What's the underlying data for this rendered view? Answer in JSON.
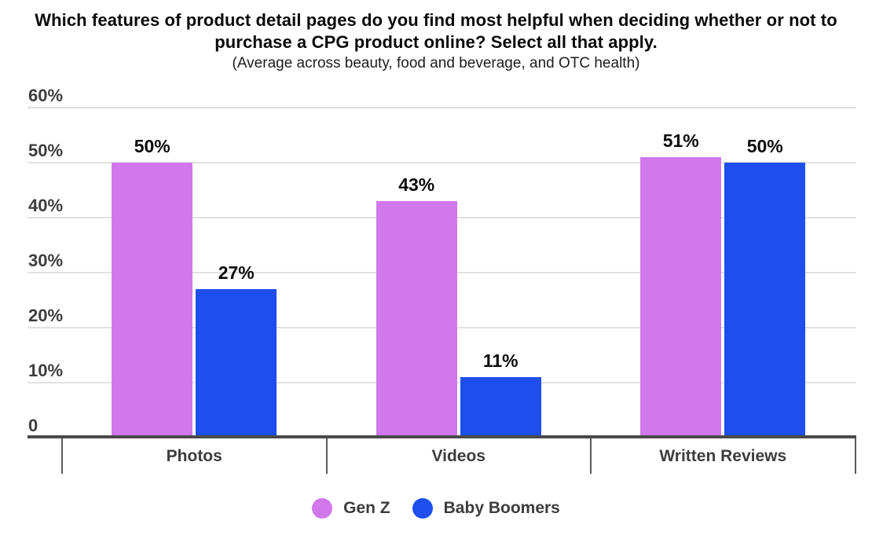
{
  "header": {
    "title": "Which features of product detail pages do you find most helpful when deciding whether or not to purchase a CPG product online? Select all that apply.",
    "subtitle": "(Average across beauty, food and beverage, and OTC health)"
  },
  "chart_data": {
    "type": "bar",
    "title": "Which features of product detail pages do you find most helpful when deciding whether or not to purchase a CPG product online? Select all that apply.",
    "subtitle": "(Average across beauty, food and beverage, and OTC health)",
    "categories": [
      "Photos",
      "Videos",
      "Written Reviews"
    ],
    "series": [
      {
        "name": "Gen Z",
        "color": "#D078EC",
        "values": [
          50,
          43,
          51
        ]
      },
      {
        "name": "Baby Boomers",
        "color": "#1E4EF0",
        "values": [
          27,
          11,
          50
        ]
      }
    ],
    "data_label_format": "percent",
    "y_ticks": [
      {
        "value": 60,
        "label": "60%"
      },
      {
        "value": 50,
        "label": "50%"
      },
      {
        "value": 40,
        "label": "40%"
      },
      {
        "value": 30,
        "label": "30%"
      },
      {
        "value": 20,
        "label": "20%"
      },
      {
        "value": 10,
        "label": "10%"
      },
      {
        "value": 0,
        "label": "0"
      }
    ],
    "ylim": [
      0,
      60
    ],
    "grid": true,
    "legend_position": "bottom"
  },
  "colors": {
    "gen_z": "#D078EC",
    "baby_boomers": "#1E4EF0",
    "axis": "#4a4a4a",
    "gridline": "#e1e1e1",
    "label_dark": "#3d3d3d",
    "value_label": "#0b0b0b",
    "background": "#ffffff"
  }
}
